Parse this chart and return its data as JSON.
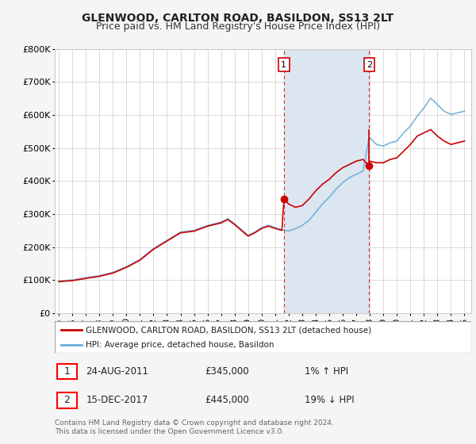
{
  "title": "GLENWOOD, CARLTON ROAD, BASILDON, SS13 2LT",
  "subtitle": "Price paid vs. HM Land Registry's House Price Index (HPI)",
  "legend_label_red": "GLENWOOD, CARLTON ROAD, BASILDON, SS13 2LT (detached house)",
  "legend_label_blue": "HPI: Average price, detached house, Basildon",
  "annotation1_num": "1",
  "annotation1_date": "24-AUG-2011",
  "annotation1_price": "£345,000",
  "annotation1_hpi": "1% ↑ HPI",
  "annotation2_num": "2",
  "annotation2_date": "15-DEC-2017",
  "annotation2_price": "£445,000",
  "annotation2_hpi": "19% ↓ HPI",
  "footer": "Contains HM Land Registry data © Crown copyright and database right 2024.\nThis data is licensed under the Open Government Licence v3.0.",
  "ylim": [
    0,
    800000
  ],
  "yticks": [
    0,
    100000,
    200000,
    300000,
    400000,
    500000,
    600000,
    700000,
    800000
  ],
  "ytick_labels": [
    "£0",
    "£100K",
    "£200K",
    "£300K",
    "£400K",
    "£500K",
    "£600K",
    "£700K",
    "£800K"
  ],
  "sale1_x": 2011.64,
  "sale1_y": 345000,
  "sale2_x": 2017.96,
  "sale2_y": 445000,
  "sale2_line_top_y": 555000,
  "vline1_x": 2011.64,
  "vline2_x": 2017.96,
  "shaded_xmin": 2011.64,
  "shaded_xmax": 2017.96,
  "red_color": "#cc0000",
  "blue_color": "#6aaed6",
  "shaded_color": "#dce6f1",
  "plot_bg_color": "#ffffff",
  "fig_bg_color": "#f5f5f5",
  "grid_color": "#cccccc",
  "title_fontsize": 10,
  "subtitle_fontsize": 9,
  "xlim_min": 1994.7,
  "xlim_max": 2025.5,
  "xtick_years": [
    1995,
    1996,
    1997,
    1998,
    1999,
    2000,
    2001,
    2002,
    2003,
    2004,
    2005,
    2006,
    2007,
    2008,
    2009,
    2010,
    2011,
    2012,
    2013,
    2014,
    2015,
    2016,
    2017,
    2018,
    2019,
    2020,
    2021,
    2022,
    2023,
    2024,
    2025
  ]
}
